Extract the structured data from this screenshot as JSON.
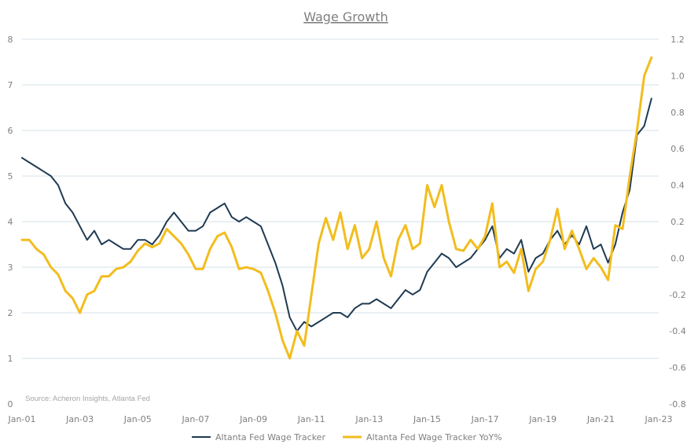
{
  "chart_data": {
    "type": "line",
    "title": "Wage Growth",
    "source": "Source: Acheron Insights, Atlanta Fed",
    "x_ticks": [
      "Jan-01",
      "Jan-03",
      "Jan-05",
      "Jan-07",
      "Jan-09",
      "Jan-11",
      "Jan-13",
      "Jan-15",
      "Jan-17",
      "Jan-19",
      "Jan-21",
      "Jan-23"
    ],
    "xlim": [
      "2001-01",
      "2023-01"
    ],
    "y_left": {
      "ylim": [
        0,
        8
      ],
      "ticks": [
        "0",
        "1",
        "2",
        "3",
        "4",
        "5",
        "6",
        "7",
        "8"
      ]
    },
    "y_right": {
      "ylim": [
        -0.8,
        1.2
      ],
      "ticks": [
        "-0.8",
        "-0.6",
        "-0.4",
        "-0.2",
        "0.0",
        "0.2",
        "0.4",
        "0.6",
        "0.8",
        "1.0",
        "1.2"
      ]
    },
    "grid": true,
    "legend_position": "bottom",
    "series": [
      {
        "name": "Altanta Fed Wage Tracker",
        "axis": "left",
        "color": "#1f3a52",
        "points": [
          [
            "2001-01",
            5.4
          ],
          [
            "2001-04",
            5.3
          ],
          [
            "2001-07",
            5.2
          ],
          [
            "2001-10",
            5.1
          ],
          [
            "2002-01",
            5.0
          ],
          [
            "2002-04",
            4.8
          ],
          [
            "2002-07",
            4.4
          ],
          [
            "2002-10",
            4.2
          ],
          [
            "2003-01",
            3.9
          ],
          [
            "2003-04",
            3.6
          ],
          [
            "2003-07",
            3.8
          ],
          [
            "2003-10",
            3.5
          ],
          [
            "2004-01",
            3.6
          ],
          [
            "2004-04",
            3.5
          ],
          [
            "2004-07",
            3.4
          ],
          [
            "2004-10",
            3.4
          ],
          [
            "2005-01",
            3.6
          ],
          [
            "2005-04",
            3.6
          ],
          [
            "2005-07",
            3.5
          ],
          [
            "2005-10",
            3.7
          ],
          [
            "2006-01",
            4.0
          ],
          [
            "2006-04",
            4.2
          ],
          [
            "2006-07",
            4.0
          ],
          [
            "2006-10",
            3.8
          ],
          [
            "2007-01",
            3.8
          ],
          [
            "2007-04",
            3.9
          ],
          [
            "2007-07",
            4.2
          ],
          [
            "2007-10",
            4.3
          ],
          [
            "2008-01",
            4.4
          ],
          [
            "2008-04",
            4.1
          ],
          [
            "2008-07",
            4.0
          ],
          [
            "2008-10",
            4.1
          ],
          [
            "2009-01",
            4.0
          ],
          [
            "2009-04",
            3.9
          ],
          [
            "2009-07",
            3.5
          ],
          [
            "2009-10",
            3.1
          ],
          [
            "2010-01",
            2.6
          ],
          [
            "2010-04",
            1.9
          ],
          [
            "2010-07",
            1.6
          ],
          [
            "2010-10",
            1.8
          ],
          [
            "2011-01",
            1.7
          ],
          [
            "2011-04",
            1.8
          ],
          [
            "2011-07",
            1.9
          ],
          [
            "2011-10",
            2.0
          ],
          [
            "2012-01",
            2.0
          ],
          [
            "2012-04",
            1.9
          ],
          [
            "2012-07",
            2.1
          ],
          [
            "2012-10",
            2.2
          ],
          [
            "2013-01",
            2.2
          ],
          [
            "2013-04",
            2.3
          ],
          [
            "2013-07",
            2.2
          ],
          [
            "2013-10",
            2.1
          ],
          [
            "2014-01",
            2.3
          ],
          [
            "2014-04",
            2.5
          ],
          [
            "2014-07",
            2.4
          ],
          [
            "2014-10",
            2.5
          ],
          [
            "2015-01",
            2.9
          ],
          [
            "2015-04",
            3.1
          ],
          [
            "2015-07",
            3.3
          ],
          [
            "2015-10",
            3.2
          ],
          [
            "2016-01",
            3.0
          ],
          [
            "2016-04",
            3.1
          ],
          [
            "2016-07",
            3.2
          ],
          [
            "2016-10",
            3.4
          ],
          [
            "2017-01",
            3.6
          ],
          [
            "2017-04",
            3.9
          ],
          [
            "2017-07",
            3.2
          ],
          [
            "2017-10",
            3.4
          ],
          [
            "2018-01",
            3.3
          ],
          [
            "2018-04",
            3.6
          ],
          [
            "2018-07",
            2.9
          ],
          [
            "2018-10",
            3.2
          ],
          [
            "2019-01",
            3.3
          ],
          [
            "2019-04",
            3.6
          ],
          [
            "2019-07",
            3.8
          ],
          [
            "2019-10",
            3.5
          ],
          [
            "2020-01",
            3.7
          ],
          [
            "2020-04",
            3.5
          ],
          [
            "2020-07",
            3.9
          ],
          [
            "2020-10",
            3.4
          ],
          [
            "2021-01",
            3.5
          ],
          [
            "2021-04",
            3.1
          ],
          [
            "2021-07",
            3.5
          ],
          [
            "2021-10",
            4.2
          ],
          [
            "2022-01",
            4.7
          ],
          [
            "2022-04",
            5.9
          ],
          [
            "2022-07",
            6.1
          ],
          [
            "2022-10",
            6.7
          ]
        ]
      },
      {
        "name": "Altanta Fed Wage Tracker YoY%",
        "axis": "right",
        "color": "#f2bd1d",
        "points": [
          [
            "2001-01",
            0.1
          ],
          [
            "2001-04",
            0.1
          ],
          [
            "2001-07",
            0.05
          ],
          [
            "2001-10",
            0.02
          ],
          [
            "2002-01",
            -0.05
          ],
          [
            "2002-04",
            -0.09
          ],
          [
            "2002-07",
            -0.18
          ],
          [
            "2002-10",
            -0.22
          ],
          [
            "2003-01",
            -0.3
          ],
          [
            "2003-04",
            -0.2
          ],
          [
            "2003-07",
            -0.18
          ],
          [
            "2003-10",
            -0.1
          ],
          [
            "2004-01",
            -0.1
          ],
          [
            "2004-04",
            -0.06
          ],
          [
            "2004-07",
            -0.05
          ],
          [
            "2004-10",
            -0.02
          ],
          [
            "2005-01",
            0.04
          ],
          [
            "2005-04",
            0.08
          ],
          [
            "2005-07",
            0.06
          ],
          [
            "2005-10",
            0.08
          ],
          [
            "2006-01",
            0.16
          ],
          [
            "2006-04",
            0.12
          ],
          [
            "2006-07",
            0.08
          ],
          [
            "2006-10",
            0.02
          ],
          [
            "2007-01",
            -0.06
          ],
          [
            "2007-04",
            -0.06
          ],
          [
            "2007-07",
            0.05
          ],
          [
            "2007-10",
            0.12
          ],
          [
            "2008-01",
            0.14
          ],
          [
            "2008-04",
            0.06
          ],
          [
            "2008-07",
            -0.06
          ],
          [
            "2008-10",
            -0.05
          ],
          [
            "2009-01",
            -0.06
          ],
          [
            "2009-04",
            -0.08
          ],
          [
            "2009-07",
            -0.18
          ],
          [
            "2009-10",
            -0.3
          ],
          [
            "2010-01",
            -0.45
          ],
          [
            "2010-04",
            -0.55
          ],
          [
            "2010-07",
            -0.4
          ],
          [
            "2010-10",
            -0.48
          ],
          [
            "2011-01",
            -0.2
          ],
          [
            "2011-04",
            0.08
          ],
          [
            "2011-07",
            0.22
          ],
          [
            "2011-10",
            0.1
          ],
          [
            "2012-01",
            0.25
          ],
          [
            "2012-04",
            0.05
          ],
          [
            "2012-07",
            0.18
          ],
          [
            "2012-10",
            0.0
          ],
          [
            "2013-01",
            0.05
          ],
          [
            "2013-04",
            0.2
          ],
          [
            "2013-07",
            0.0
          ],
          [
            "2013-10",
            -0.1
          ],
          [
            "2014-01",
            0.1
          ],
          [
            "2014-04",
            0.18
          ],
          [
            "2014-07",
            0.05
          ],
          [
            "2014-10",
            0.08
          ],
          [
            "2015-01",
            0.4
          ],
          [
            "2015-04",
            0.28
          ],
          [
            "2015-07",
            0.4
          ],
          [
            "2015-10",
            0.2
          ],
          [
            "2016-01",
            0.05
          ],
          [
            "2016-04",
            0.04
          ],
          [
            "2016-07",
            0.1
          ],
          [
            "2016-10",
            0.05
          ],
          [
            "2017-01",
            0.12
          ],
          [
            "2017-04",
            0.3
          ],
          [
            "2017-07",
            -0.05
          ],
          [
            "2017-10",
            -0.02
          ],
          [
            "2018-01",
            -0.08
          ],
          [
            "2018-04",
            0.05
          ],
          [
            "2018-07",
            -0.18
          ],
          [
            "2018-10",
            -0.06
          ],
          [
            "2019-01",
            -0.02
          ],
          [
            "2019-04",
            0.1
          ],
          [
            "2019-07",
            0.27
          ],
          [
            "2019-10",
            0.05
          ],
          [
            "2020-01",
            0.15
          ],
          [
            "2020-04",
            0.05
          ],
          [
            "2020-07",
            -0.06
          ],
          [
            "2020-10",
            0.0
          ],
          [
            "2021-01",
            -0.05
          ],
          [
            "2021-04",
            -0.12
          ],
          [
            "2021-07",
            0.18
          ],
          [
            "2021-10",
            0.16
          ],
          [
            "2022-01",
            0.45
          ],
          [
            "2022-04",
            0.7
          ],
          [
            "2022-07",
            1.0
          ],
          [
            "2022-10",
            1.1
          ]
        ]
      }
    ]
  }
}
